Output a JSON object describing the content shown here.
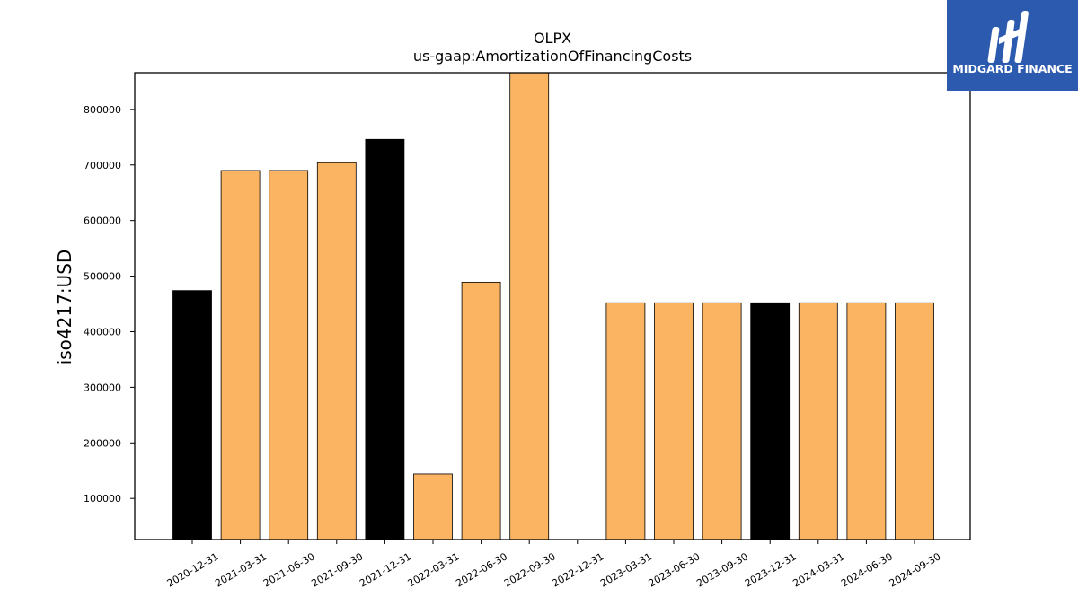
{
  "chart_data": {
    "type": "bar",
    "title": "OLPX",
    "subtitle": "us-gaap:AmortizationOfFinancingCosts",
    "xlabel": "",
    "ylabel": "iso4217:USD",
    "categories": [
      "2020-12-31",
      "2021-03-31",
      "2021-06-30",
      "2021-09-30",
      "2021-12-31",
      "2022-03-31",
      "2022-06-30",
      "2022-09-30",
      "2022-12-31",
      "2023-03-31",
      "2023-06-30",
      "2023-09-30",
      "2023-12-31",
      "2024-03-31",
      "2024-06-30",
      "2024-09-30"
    ],
    "values": [
      474000,
      690000,
      690000,
      704000,
      746000,
      144000,
      489000,
      866000,
      null,
      452000,
      452000,
      452000,
      452000,
      452000,
      452000,
      452000
    ],
    "bar_colors": [
      "#000000",
      "#fbb462",
      "#fbb462",
      "#fbb462",
      "#000000",
      "#fbb462",
      "#fbb462",
      "#fbb462",
      "#fbb462",
      "#fbb462",
      "#fbb462",
      "#fbb462",
      "#000000",
      "#fbb462",
      "#fbb462",
      "#fbb462"
    ],
    "ylim": [
      26000,
      866000
    ],
    "yticks": [
      100000,
      200000,
      300000,
      400000,
      500000,
      600000,
      700000,
      800000
    ],
    "grid": false,
    "legend": "none"
  },
  "logo": {
    "text": "MIDGARD FINANCE",
    "background": "#2b5aaf"
  }
}
